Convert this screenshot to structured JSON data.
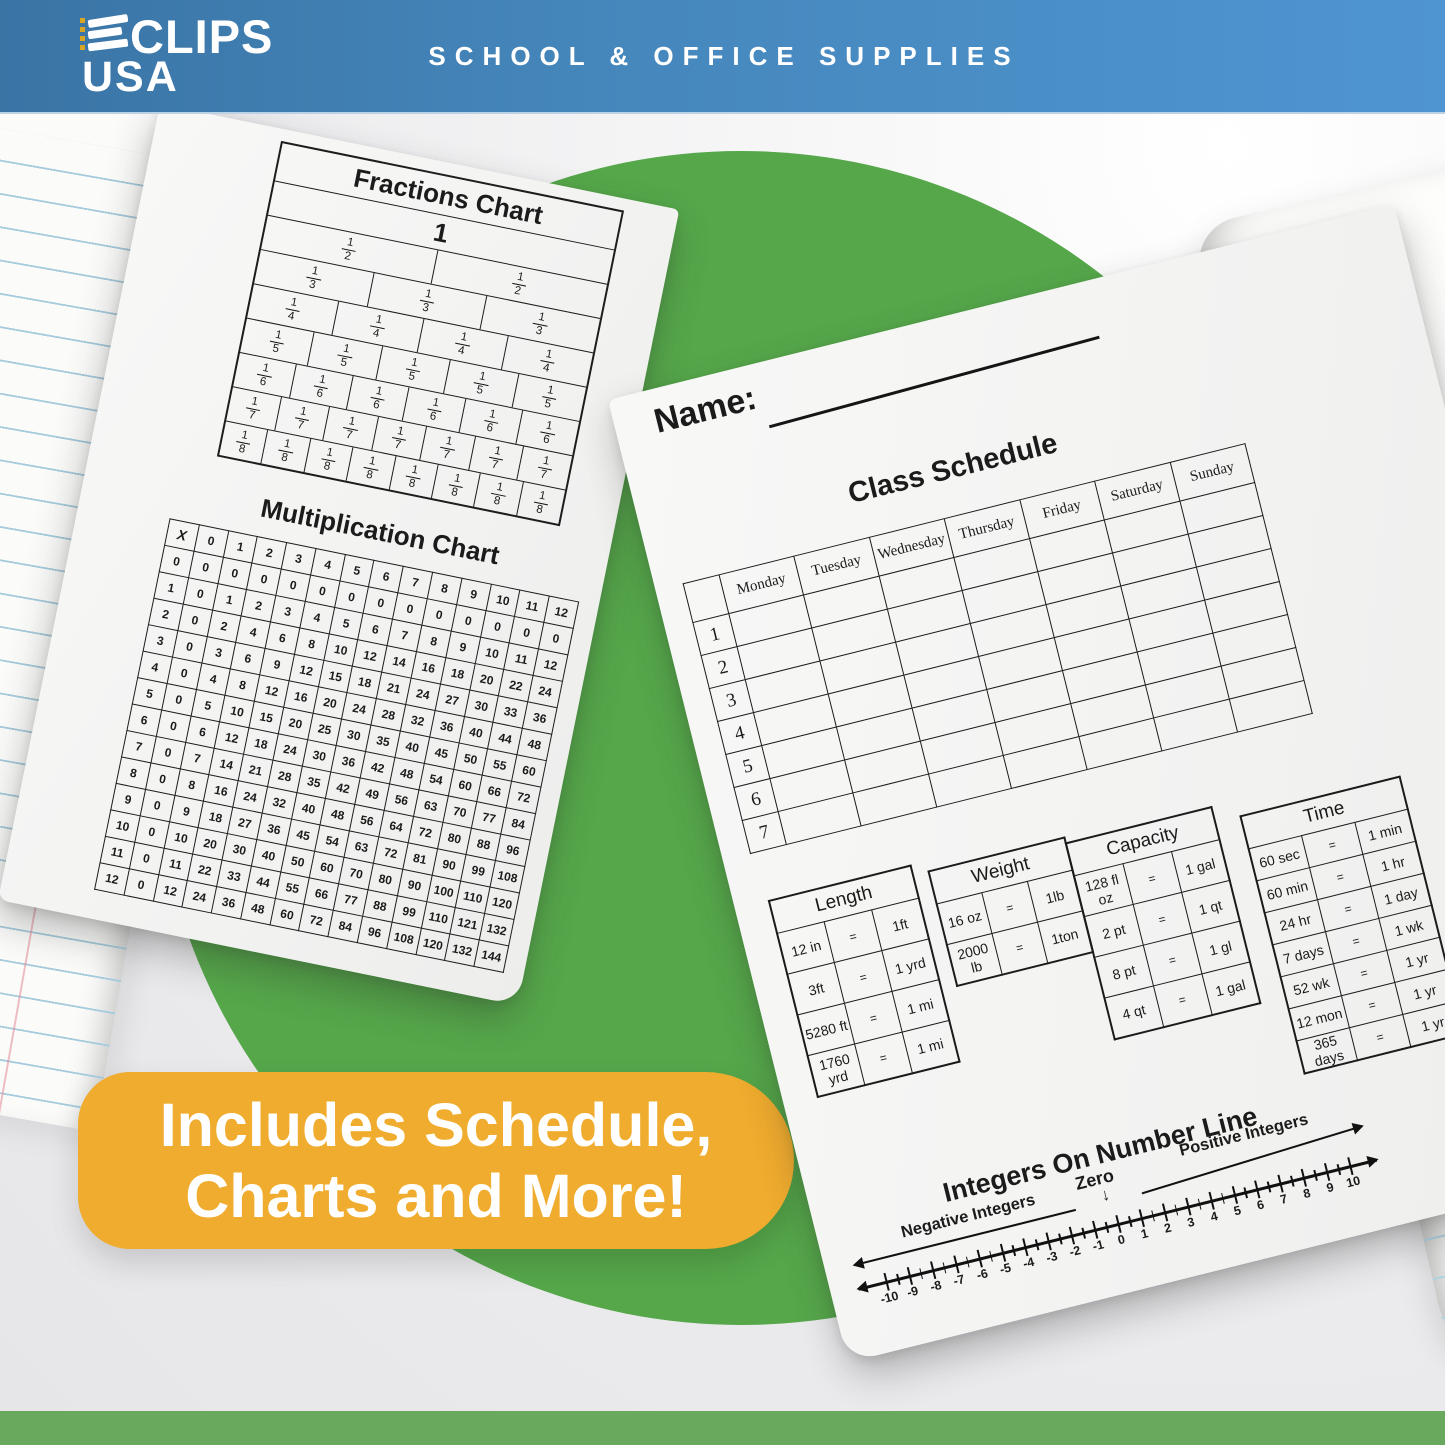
{
  "header": {
    "brand_top": "CLIPS",
    "brand_bottom": "USA",
    "tagline": "SCHOOL & OFFICE SUPPLIES"
  },
  "banner": {
    "line1": "Includes Schedule,",
    "line2": "Charts and More!"
  },
  "left_page": {
    "fractions": {
      "title": "Fractions Chart",
      "rows": [
        {
          "den": 1,
          "count": 1
        },
        {
          "den": 2,
          "count": 2
        },
        {
          "den": 3,
          "count": 3
        },
        {
          "den": 4,
          "count": 4
        },
        {
          "den": 5,
          "count": 5
        },
        {
          "den": 6,
          "count": 6
        },
        {
          "den": 7,
          "count": 7
        },
        {
          "den": 8,
          "count": 8
        }
      ]
    },
    "multiplication": {
      "title": "Multiplication Chart",
      "grid": [
        [
          "X",
          0,
          1,
          2,
          3,
          4,
          5,
          6,
          7,
          8,
          9,
          10,
          11,
          12
        ],
        [
          0,
          0,
          0,
          0,
          0,
          0,
          0,
          0,
          0,
          0,
          0,
          0,
          0,
          0
        ],
        [
          1,
          0,
          1,
          2,
          3,
          4,
          5,
          6,
          7,
          8,
          9,
          10,
          11,
          12
        ],
        [
          2,
          0,
          2,
          4,
          6,
          8,
          10,
          12,
          14,
          16,
          18,
          20,
          22,
          24
        ],
        [
          3,
          0,
          3,
          6,
          9,
          12,
          15,
          18,
          21,
          24,
          27,
          30,
          33,
          36
        ],
        [
          4,
          0,
          4,
          8,
          12,
          16,
          20,
          24,
          28,
          32,
          36,
          40,
          44,
          48
        ],
        [
          5,
          0,
          5,
          10,
          15,
          20,
          25,
          30,
          35,
          40,
          45,
          50,
          55,
          60
        ],
        [
          6,
          0,
          6,
          12,
          18,
          24,
          30,
          36,
          42,
          48,
          54,
          60,
          66,
          72
        ],
        [
          7,
          0,
          7,
          14,
          21,
          28,
          35,
          42,
          49,
          56,
          63,
          70,
          77,
          84
        ],
        [
          8,
          0,
          8,
          16,
          24,
          32,
          40,
          48,
          56,
          64,
          72,
          80,
          88,
          96
        ],
        [
          9,
          0,
          9,
          18,
          27,
          36,
          45,
          54,
          63,
          72,
          81,
          90,
          99,
          108
        ],
        [
          10,
          0,
          10,
          20,
          30,
          40,
          50,
          60,
          70,
          80,
          90,
          100,
          110,
          120
        ],
        [
          11,
          0,
          11,
          22,
          33,
          44,
          55,
          66,
          77,
          88,
          99,
          110,
          121,
          132
        ],
        [
          12,
          0,
          12,
          24,
          36,
          48,
          60,
          72,
          84,
          96,
          108,
          120,
          132,
          144
        ]
      ]
    }
  },
  "right_page": {
    "name_label": "Name:",
    "schedule": {
      "title": "Class Schedule",
      "days": [
        "Monday",
        "Tuesday",
        "Wednesday",
        "Thursday",
        "Friday",
        "Saturday",
        "Sunday"
      ],
      "periods": [
        "1",
        "2",
        "3",
        "4",
        "5",
        "6",
        "7"
      ]
    },
    "conversions": [
      {
        "title": "Length",
        "rows": [
          [
            "12 in",
            "=",
            "1ft"
          ],
          [
            "3ft",
            "=",
            "1 yrd"
          ],
          [
            "5280 ft",
            "=",
            "1 mi"
          ],
          [
            "1760 yrd",
            "=",
            "1 mi"
          ]
        ]
      },
      {
        "title": "Weight",
        "rows": [
          [
            "16 oz",
            "=",
            "1lb"
          ],
          [
            "2000 lb",
            "=",
            "1ton"
          ]
        ]
      },
      {
        "title": "Capacity",
        "rows": [
          [
            "128 fl oz",
            "=",
            "1 gal"
          ],
          [
            "2 pt",
            "=",
            "1 qt"
          ],
          [
            "8 pt",
            "=",
            "1 gl"
          ],
          [
            "4 qt",
            "=",
            "1 gal"
          ]
        ]
      },
      {
        "title": "Time",
        "rows": [
          [
            "60 sec",
            "=",
            "1 min"
          ],
          [
            "60 min",
            "=",
            "1 hr"
          ],
          [
            "24 hr",
            "=",
            "1 day"
          ],
          [
            "7 days",
            "=",
            "1 wk"
          ],
          [
            "52 wk",
            "=",
            "1 yr"
          ],
          [
            "12 mon",
            "=",
            "1 yr"
          ],
          [
            "365 days",
            "=",
            "1 yr"
          ]
        ]
      }
    ],
    "numberline": {
      "title": "Integers On Number Line",
      "negative_label": "Negative Integers",
      "zero_label": "Zero",
      "positive_label": "Positive Integers",
      "min": -10,
      "max": 10,
      "tick_labels": [
        "-10",
        "-9",
        "-8",
        "-7",
        "-6",
        "-5",
        "-4",
        "-3",
        "-2",
        "-1",
        "0",
        "1",
        "2",
        "3",
        "4",
        "5",
        "6",
        "7",
        "8",
        "9",
        "10"
      ]
    }
  },
  "colors": {
    "header_blue_left": "#3a74a5",
    "header_blue_right": "#4f95d2",
    "green_circle": "#55a74a",
    "bottom_bar_green": "#69a95e",
    "banner_yellow": "#f0ac2e",
    "rule_line_blue": "#a6cbdc",
    "gold_dot": "#d8a522"
  }
}
